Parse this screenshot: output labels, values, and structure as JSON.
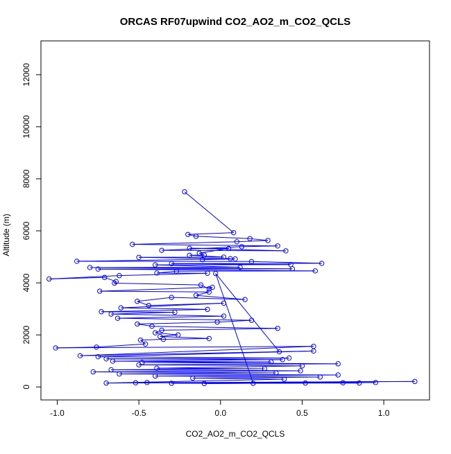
{
  "chart_data": {
    "type": "line",
    "title": "ORCAS RF07upwind CO2_AO2_m_CO2_QCLS",
    "xlabel": "CO2_AO2_m_CO2_QCLS",
    "ylabel": "Altitude (m)",
    "xlim": [
      -1.1,
      1.28
    ],
    "ylim": [
      -500,
      13300
    ],
    "xticks": [
      -1.0,
      -0.5,
      0.0,
      0.5,
      1.0
    ],
    "xtick_labels": [
      "-1.0",
      "-0.5",
      "0.0",
      "0.5",
      "1.0"
    ],
    "yticks": [
      0,
      2000,
      4000,
      6000,
      8000,
      10000,
      12000
    ],
    "ytick_labels": [
      "0",
      "2000",
      "4000",
      "6000",
      "8000",
      "10000",
      "12000"
    ],
    "grid": false,
    "legend": "none",
    "series_color": "#0000ff",
    "marker": "open-circle",
    "points": [
      [
        -0.22,
        7500
      ],
      [
        0.08,
        5930
      ],
      [
        -0.2,
        5860
      ],
      [
        -0.15,
        5790
      ],
      [
        0.18,
        5700
      ],
      [
        0.29,
        5630
      ],
      [
        0.1,
        5580
      ],
      [
        -0.54,
        5480
      ],
      [
        0.35,
        5420
      ],
      [
        0.13,
        5390
      ],
      [
        -0.36,
        5250
      ],
      [
        0.4,
        5230
      ],
      [
        -0.19,
        5330
      ],
      [
        0.05,
        5320
      ],
      [
        -0.13,
        5140
      ],
      [
        -0.1,
        5070
      ],
      [
        -0.19,
        5060
      ],
      [
        0.02,
        4990
      ],
      [
        -0.5,
        4980
      ],
      [
        0.06,
        4930
      ],
      [
        -0.11,
        4890
      ],
      [
        0.09,
        4920
      ],
      [
        -0.88,
        4830
      ],
      [
        0.19,
        4820
      ],
      [
        0.62,
        4750
      ],
      [
        -0.3,
        4740
      ],
      [
        0.43,
        4700
      ],
      [
        -0.4,
        4690
      ],
      [
        0.12,
        4600
      ],
      [
        -0.8,
        4590
      ],
      [
        0.44,
        4540
      ],
      [
        -0.75,
        4530
      ],
      [
        0.58,
        4460
      ],
      [
        -0.27,
        4450
      ],
      [
        -0.39,
        4380
      ],
      [
        -0.08,
        4370
      ],
      [
        -0.62,
        4280
      ],
      [
        -1.05,
        4150
      ],
      [
        -0.71,
        4210
      ],
      [
        -0.64,
        4050
      ],
      [
        -0.65,
        3990
      ],
      [
        -0.12,
        3920
      ],
      [
        -0.07,
        3770
      ],
      [
        -0.05,
        3830
      ],
      [
        -0.74,
        3680
      ],
      [
        -0.07,
        3650
      ],
      [
        -0.15,
        3520
      ],
      [
        0.15,
        3360
      ],
      [
        -0.3,
        3440
      ],
      [
        -0.51,
        3290
      ],
      [
        -0.44,
        3130
      ],
      [
        0.02,
        3220
      ],
      [
        -0.61,
        3040
      ],
      [
        -0.08,
        2980
      ],
      [
        -0.73,
        2890
      ],
      [
        -0.28,
        2870
      ],
      [
        -0.67,
        2800
      ],
      [
        0.02,
        2720
      ],
      [
        -0.63,
        2640
      ],
      [
        0.19,
        2560
      ],
      [
        -0.02,
        2490
      ],
      [
        -0.51,
        2420
      ],
      [
        -0.42,
        2330
      ],
      [
        0.35,
        2250
      ],
      [
        -0.36,
        2180
      ],
      [
        -0.4,
        2080
      ],
      [
        -0.26,
        2000
      ],
      [
        -0.37,
        1940
      ],
      [
        -0.07,
        1860
      ],
      [
        -0.35,
        1830
      ],
      [
        -0.49,
        1800
      ],
      [
        -0.46,
        1650
      ],
      [
        -0.76,
        1530
      ],
      [
        -1.01,
        1500
      ],
      [
        0.57,
        1560
      ],
      [
        -0.86,
        1200
      ],
      [
        0.57,
        1380
      ],
      [
        -0.75,
        1160
      ],
      [
        0.42,
        1110
      ],
      [
        -0.7,
        1080
      ],
      [
        0.38,
        1050
      ],
      [
        -0.66,
        990
      ],
      [
        0.31,
        960
      ],
      [
        -0.48,
        940
      ],
      [
        0.72,
        890
      ],
      [
        -0.5,
        850
      ],
      [
        0.5,
        810
      ],
      [
        -0.39,
        720
      ],
      [
        0.27,
        700
      ],
      [
        -0.67,
        660
      ],
      [
        0.49,
        620
      ],
      [
        -0.78,
        580
      ],
      [
        0.34,
        540
      ],
      [
        -0.62,
        500
      ],
      [
        0.72,
        460
      ],
      [
        -0.4,
        420
      ],
      [
        0.61,
        380
      ],
      [
        -0.17,
        340
      ],
      [
        0.39,
        300
      ],
      [
        -0.7,
        150
      ],
      [
        1.19,
        210
      ],
      [
        -0.52,
        160
      ],
      [
        0.95,
        170
      ],
      [
        -0.3,
        140
      ],
      [
        0.85,
        150
      ],
      [
        -0.45,
        170
      ],
      [
        0.75,
        160
      ],
      [
        -0.1,
        130
      ],
      [
        0.52,
        150
      ],
      [
        0.2,
        140
      ],
      [
        -0.03,
        4360
      ],
      [
        0.36,
        1350
      ]
    ]
  }
}
